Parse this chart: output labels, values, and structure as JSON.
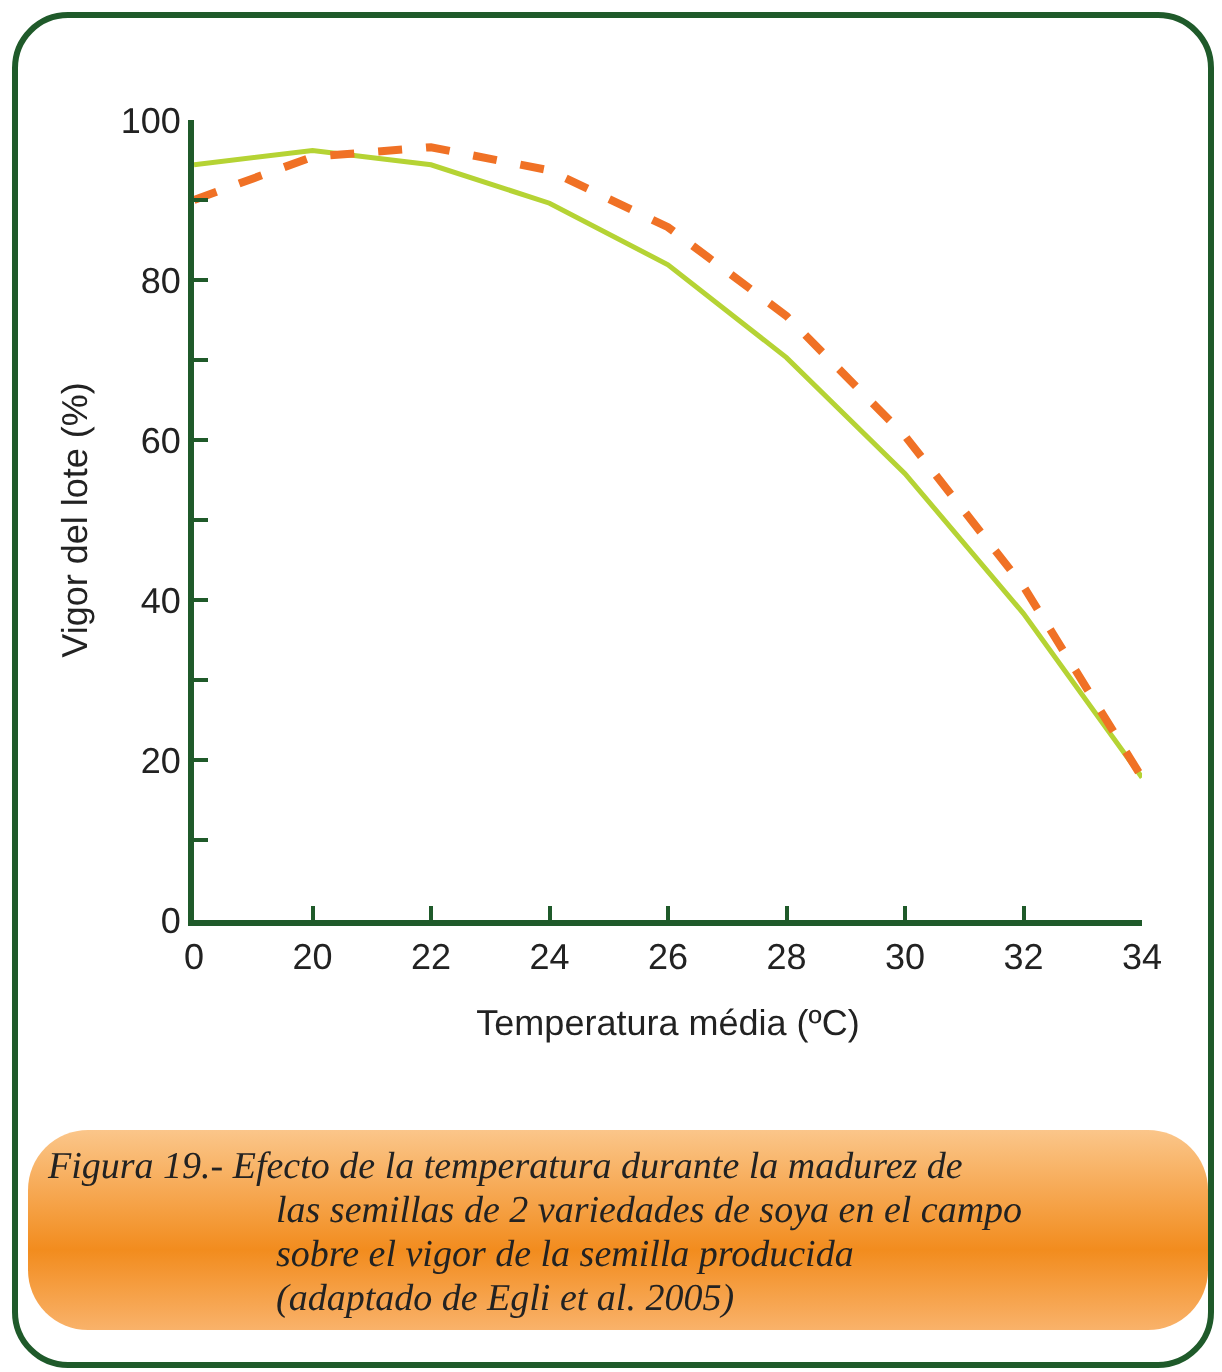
{
  "chart_data": {
    "type": "line",
    "xlabel": "Temperatura média (ºC)",
    "ylabel": "Vigor del lote (%)",
    "categories": [
      "0",
      "20",
      "22",
      "24",
      "26",
      "28",
      "30",
      "32",
      "34"
    ],
    "series": [
      {
        "color": "#b5d334",
        "line_style": "solid",
        "values": [
          94.4,
          96.2,
          94.4,
          89.6,
          81.9,
          70.3,
          55.8,
          38.3,
          17.8
        ]
      },
      {
        "color": "#f07125",
        "line_style": "dashed",
        "values": [
          90,
          95.4,
          96.6,
          93.7,
          86.6,
          75.5,
          60.5,
          41.7,
          17.8
        ]
      }
    ],
    "ylim": [
      0,
      100
    ],
    "yticks": [
      0,
      {
        "value": 10,
        "label": null
      },
      20,
      {
        "value": 30,
        "label": null
      },
      40,
      {
        "value": 50,
        "label": null
      },
      60,
      {
        "value": 70,
        "label": null
      },
      80,
      {
        "value": 90,
        "label": null
      },
      100
    ],
    "grid": false,
    "marker": "none",
    "annotations": [
      "Figura 19.- Efecto de la temperatura durante la madurez de\nlas semillas de 2 variedades de soya en el campo\nsobre el vigor de la semilla producida\n(adaptado de Egli et al. 2005)"
    ]
  }
}
